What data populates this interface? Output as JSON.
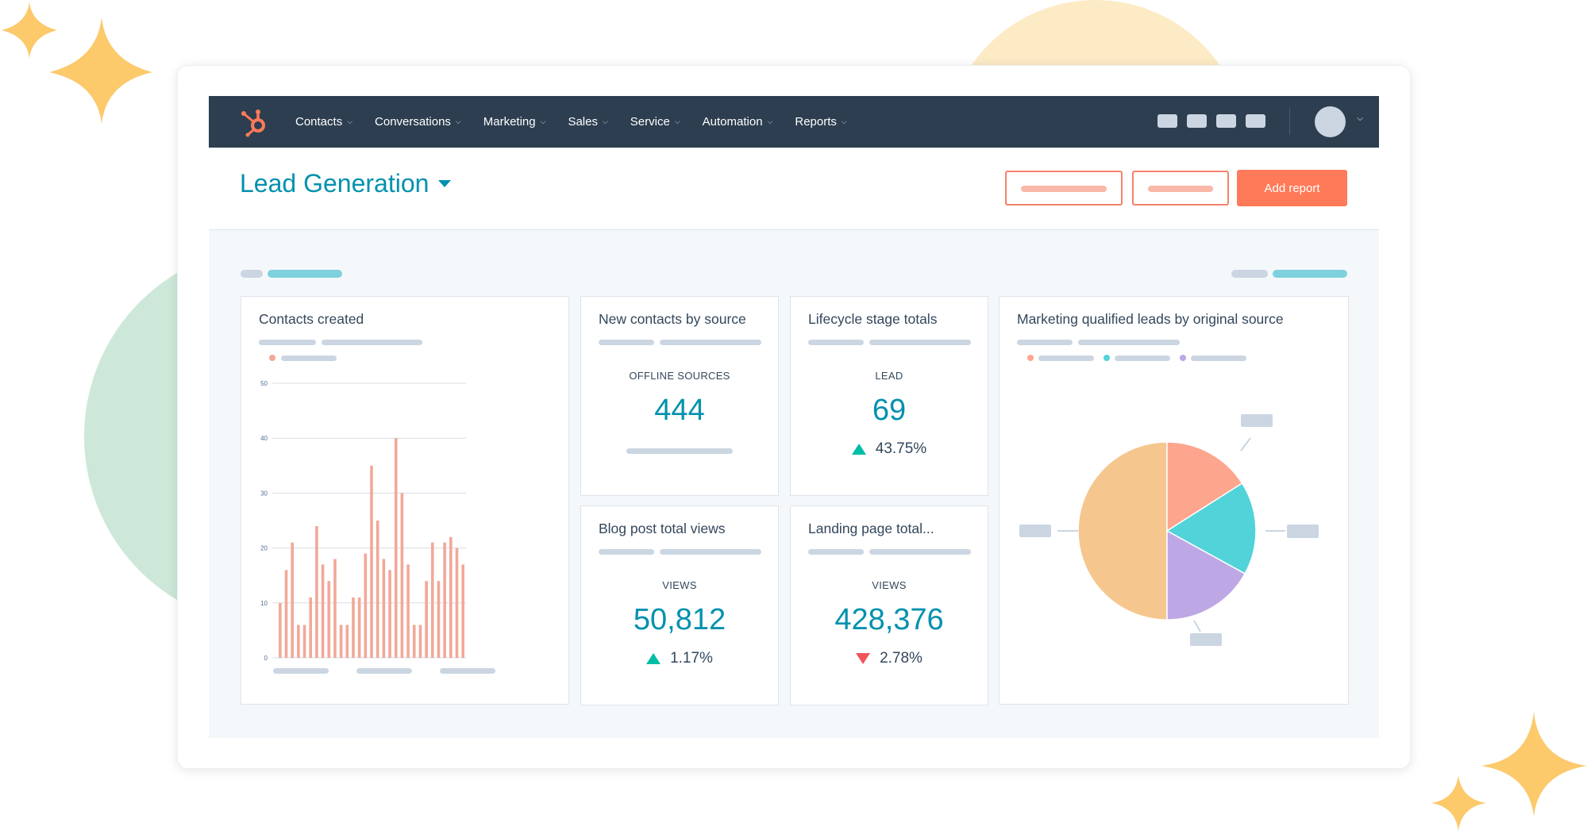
{
  "colors": {
    "nav_bg": "#2d3e50",
    "accent_teal": "#0091ae",
    "accent_orange": "#ff7a59",
    "bar_color": "#f2a898",
    "pie_orange": "#f5c78e",
    "pie_salmon": "#fea58e",
    "pie_teal": "#51d3d9",
    "pie_purple": "#bea7e5",
    "positive": "#00bda5",
    "negative": "#f2545b"
  },
  "nav": {
    "logo": "hubspot-sprocket-icon",
    "items": [
      {
        "label": "Contacts"
      },
      {
        "label": "Conversations"
      },
      {
        "label": "Marketing"
      },
      {
        "label": "Sales"
      },
      {
        "label": "Service"
      },
      {
        "label": "Automation"
      },
      {
        "label": "Reports"
      }
    ]
  },
  "header": {
    "title": "Lead Generation",
    "add_report_label": "Add report"
  },
  "panels": {
    "contacts_created": {
      "title": "Contacts created"
    },
    "new_contacts": {
      "title": "New contacts by source",
      "label": "OFFLINE SOURCES",
      "value": "444"
    },
    "lifecycle": {
      "title": "Lifecycle stage totals",
      "label": "LEAD",
      "value": "69",
      "change": "43.75%",
      "direction": "up"
    },
    "blog_views": {
      "title": "Blog post total views",
      "label": "VIEWS",
      "value": "50,812",
      "change": "1.17%",
      "direction": "up"
    },
    "landing_views": {
      "title": "Landing page total...",
      "label": "VIEWS",
      "value": "428,376",
      "change": "2.78%",
      "direction": "down"
    },
    "mql": {
      "title": "Marketing qualified leads by original source"
    }
  },
  "chart_data": [
    {
      "type": "bar",
      "title": "Contacts created",
      "yticks": [
        "50",
        "40",
        "30",
        "20",
        "10",
        "0"
      ],
      "ylim": [
        0,
        50
      ],
      "values": [
        10,
        16,
        21,
        6,
        6,
        11,
        24,
        17,
        14,
        18,
        6,
        6,
        11,
        11,
        19,
        35,
        25,
        18,
        16,
        40,
        30,
        17,
        6,
        6,
        14,
        21,
        14,
        21,
        22,
        20,
        17
      ],
      "grid": true
    },
    {
      "type": "pie",
      "title": "Marketing qualified leads by original source",
      "values": [
        50,
        16,
        17,
        17
      ],
      "colors": [
        "#f5c78e",
        "#fea58e",
        "#51d3d9",
        "#bea7e5"
      ]
    }
  ]
}
